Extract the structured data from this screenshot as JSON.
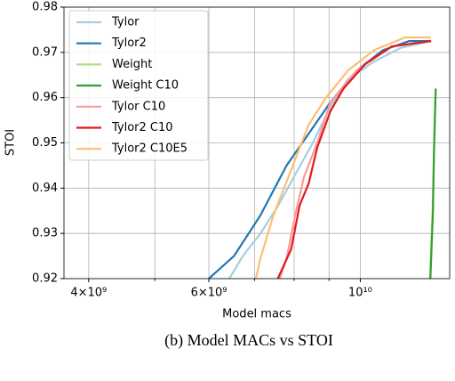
{
  "chart_data": {
    "type": "line",
    "xlabel": "Model macs",
    "ylabel": "STOI",
    "caption": "(b) Model MACs vs STOI",
    "xscale": "log",
    "grid": true,
    "legend": "upper left",
    "xlim": [
      3680000000,
      13520000000
    ],
    "xticks": [
      {
        "value": 4000000000,
        "label": "4×10⁹"
      },
      {
        "value": 6000000000,
        "label": "6×10⁹"
      },
      {
        "value": 10000000000,
        "label": "10¹⁰"
      }
    ],
    "xminorticks": [
      5000000000,
      7000000000,
      8000000000,
      9000000000
    ],
    "ylim": [
      0.92,
      0.98
    ],
    "yticks": [
      0.92,
      0.93,
      0.94,
      0.95,
      0.96,
      0.97,
      0.98
    ],
    "series": [
      {
        "name": "Tylor",
        "color": "#a6cee3",
        "x": [
          6430000000,
          6730000000,
          7140000000,
          7570000000,
          8030000000,
          8520000000,
          9040000000,
          9590000000,
          10480000000,
          11460000000,
          12700000000
        ],
        "values": [
          0.92,
          0.925,
          0.93,
          0.936,
          0.943,
          0.95,
          0.958,
          0.964,
          0.968,
          0.971,
          0.9725
        ]
      },
      {
        "name": "Tylor2",
        "color": "#1f78b4",
        "x": [
          6000000000,
          6530000000,
          7140000000,
          7800000000,
          8400000000,
          9040000000,
          9880000000,
          10800000000,
          11800000000,
          12700000000
        ],
        "values": [
          0.92,
          0.925,
          0.934,
          0.945,
          0.952,
          0.959,
          0.966,
          0.9705,
          0.9725,
          0.9725
        ]
      },
      {
        "name": "Weight",
        "color": "#b2df8a",
        "x": [
          12650000000,
          12750000000,
          12820000000,
          12880000000
        ],
        "values": [
          0.92,
          0.933,
          0.946,
          0.96
        ]
      },
      {
        "name": "Weight C10",
        "color": "#33a02c",
        "x": [
          12670000000,
          12780000000,
          12820000000,
          12900000000
        ],
        "values": [
          0.92,
          0.935,
          0.948,
          0.962
        ]
      },
      {
        "name": "Tylor C10",
        "color": "#fb9a99",
        "x": [
          7620000000,
          7800000000,
          8030000000,
          8270000000,
          8650000000,
          9040000000,
          9880000000,
          11120000000,
          12700000000
        ],
        "values": [
          0.92,
          0.9245,
          0.934,
          0.9425,
          0.95,
          0.959,
          0.966,
          0.9713,
          0.9725
        ]
      },
      {
        "name": "Tylor2 C10",
        "color": "#e31a1c",
        "x": [
          7570000000,
          7920000000,
          8150000000,
          8400000000,
          8650000000,
          9040000000,
          9450000000,
          10180000000,
          11120000000,
          12700000000
        ],
        "values": [
          0.92,
          0.9265,
          0.9362,
          0.941,
          0.949,
          0.957,
          0.962,
          0.9675,
          0.9713,
          0.9725
        ]
      },
      {
        "name": "Tylor2 C10E5",
        "color": "#fdbf6f",
        "x": [
          7030000000,
          7140000000,
          7460000000,
          7920000000,
          8400000000,
          8910000000,
          9590000000,
          10480000000,
          11620000000,
          12700000000
        ],
        "values": [
          0.92,
          0.9245,
          0.934,
          0.944,
          0.954,
          0.96,
          0.966,
          0.9705,
          0.9733,
          0.9733
        ]
      }
    ]
  }
}
